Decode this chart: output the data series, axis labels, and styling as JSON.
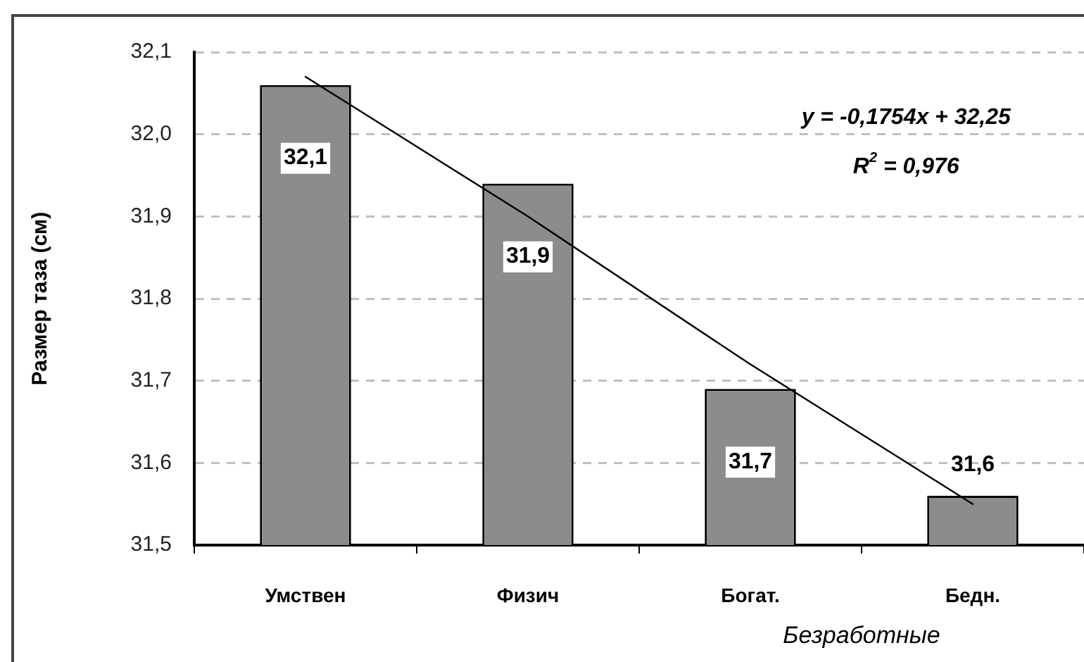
{
  "chart_data": {
    "type": "bar",
    "ylabel": "Размер таза (см)",
    "xlabel": "Безработные",
    "categories": [
      "Умствен",
      "Физич",
      "Богат.",
      "Бедн."
    ],
    "series": [
      {
        "color": "#8c8c8c",
        "values": [
          32.06,
          31.94,
          31.69,
          31.56
        ],
        "value_labels": [
          "32,1",
          "31,9",
          "31,7",
          "31,6"
        ]
      },
      {
        "type": "line",
        "color": "#000000",
        "values": [
          32.07,
          31.9,
          31.72,
          31.55
        ]
      }
    ],
    "ylim": [
      31.5,
      32.1
    ],
    "yticks": [
      {
        "value": 31.5,
        "label": "31,5"
      },
      {
        "value": 31.6,
        "label": "31,6"
      },
      {
        "value": 31.7,
        "label": "31,7"
      },
      {
        "value": 31.8,
        "label": "31,8"
      },
      {
        "value": 31.9,
        "label": "31,9"
      },
      {
        "value": 32.0,
        "label": "32,0"
      },
      {
        "value": 32.1,
        "label": "32,1"
      }
    ],
    "grid": "y",
    "marker": "none",
    "annotations": [
      "y = -0,1754x + 32,25",
      "R$^{2}$ = 0,976"
    ]
  }
}
